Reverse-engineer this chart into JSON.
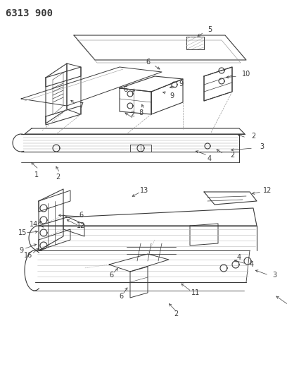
{
  "title": "6313 900",
  "bg_color": "#ffffff",
  "line_color": "#3a3a3a",
  "title_fontsize": 10,
  "label_fontsize": 7,
  "fig_width": 4.08,
  "fig_height": 5.33,
  "dpi": 100
}
